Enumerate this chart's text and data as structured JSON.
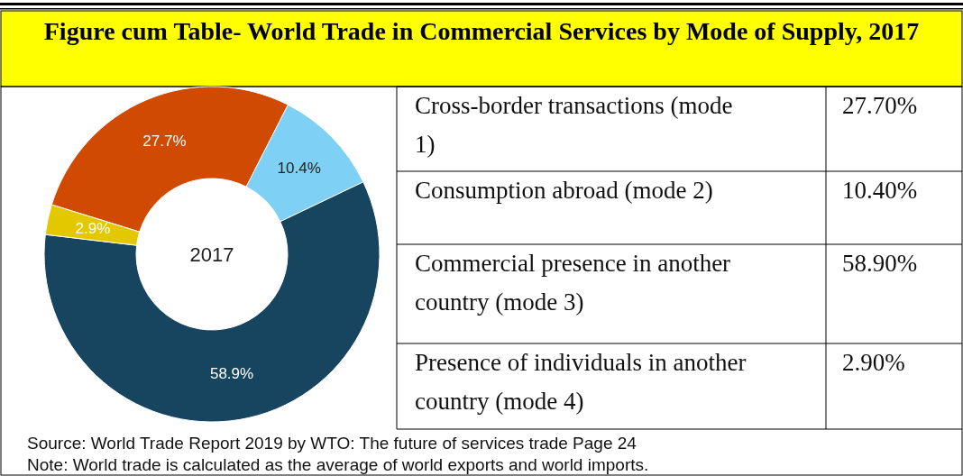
{
  "chart_data": {
    "type": "donut",
    "title": "Figure cum Table- World Trade in Commercial Services by Mode of Supply, 2017",
    "categories": [
      null,
      null,
      null,
      null
    ],
    "values": [
      27.7,
      10.4,
      58.9,
      2.9
    ],
    "colors": [
      "#d04a02",
      "#7fd0f5",
      "#17445e",
      "#e3c800"
    ],
    "value_labels": [
      "27.7%",
      "10.4%",
      "58.9%",
      "2.9%"
    ],
    "annotations": [
      "2017",
      "Cross-border transactions (mode 1)",
      "Consumption abroad (mode 2)",
      "Commercial presence in another country (mode 3)",
      "Presence of individuals in another country (mode 4)",
      "27.70%",
      "10.40%",
      "58.90%",
      "2.90%",
      "Source: World Trade Report 2019 by WTO: The future of services trade Page 24",
      "Note: World trade is calculated as the average of world exports and world imports."
    ]
  }
}
